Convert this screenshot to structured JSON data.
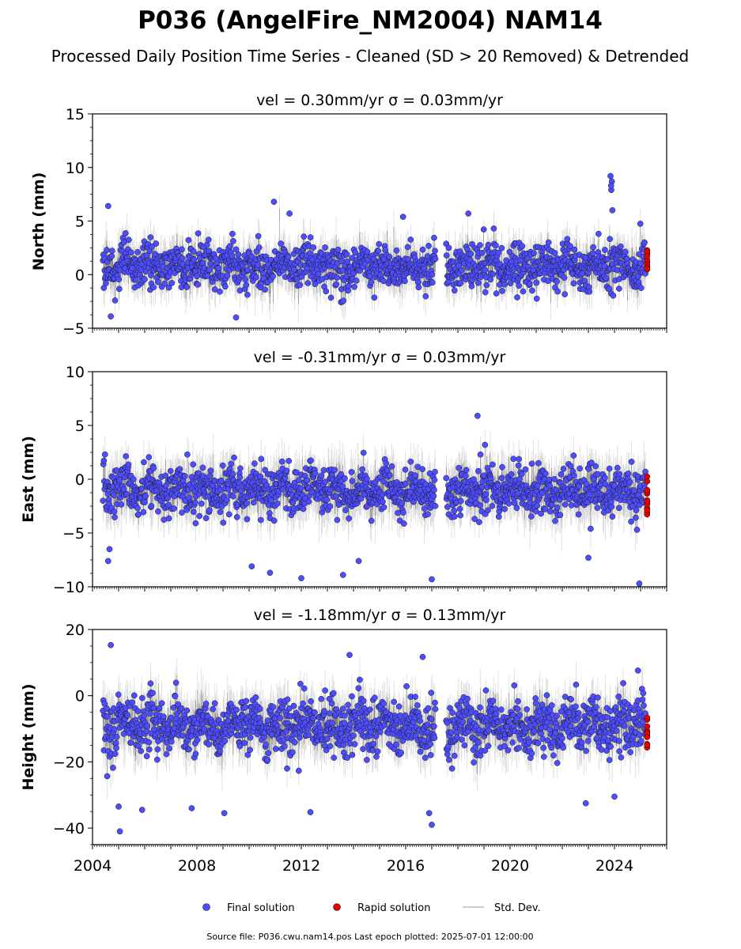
{
  "figure": {
    "title": "P036 (AngelFire_NM2004) NAM14",
    "subtitle": "Processed Daily Position Time Series - Cleaned (SD > 20 Removed) & Detrended",
    "footer": "Source file: P036.cwu.nam14.pos  Last epoch plotted: 2025-07-01 12:00:00"
  },
  "legend": [
    {
      "label": "Final solution",
      "color": "#4d4dff",
      "marker": "circle"
    },
    {
      "label": "Rapid solution",
      "color": "#e60000",
      "marker": "circle"
    },
    {
      "label": "Std. Dev.",
      "color": "#bbbbbb",
      "marker": "line"
    }
  ],
  "chart_data": [
    {
      "type": "scatter",
      "title": "vel = 0.30mm/yr   σ = 0.03mm/yr",
      "ylabel": "North (mm)",
      "xlim": [
        2004.0,
        2026.0
      ],
      "ylim": [
        -5,
        15
      ],
      "yticks": [
        -5,
        0,
        5,
        10,
        15
      ],
      "xticks": [
        2004,
        2008,
        2012,
        2016,
        2020,
        2024
      ],
      "final_span": [
        2004.4,
        2025.2
      ],
      "rapid_span": [
        2025.2,
        2025.5
      ],
      "gap": [
        2017.15,
        2017.55
      ],
      "center": 0.8,
      "spread": 1.4,
      "sd_typical": 1.3,
      "rapid_range": [
        0.4,
        2.3
      ],
      "outliers": [
        {
          "x": 2004.6,
          "y": 6.4
        },
        {
          "x": 2004.7,
          "y": -3.9
        },
        {
          "x": 2009.5,
          "y": -4.0
        },
        {
          "x": 2010.95,
          "y": 6.8
        },
        {
          "x": 2011.55,
          "y": 5.7
        },
        {
          "x": 2015.9,
          "y": 5.4
        },
        {
          "x": 2018.4,
          "y": 5.7
        },
        {
          "x": 2023.85,
          "y": 9.2
        },
        {
          "x": 2023.9,
          "y": 8.7
        },
        {
          "x": 2023.88,
          "y": 7.9
        },
        {
          "x": 2023.92,
          "y": 6.0
        },
        {
          "x": 2023.87,
          "y": 8.3
        }
      ],
      "series": [
        {
          "name": "Final solution",
          "values": []
        },
        {
          "name": "Rapid solution",
          "values": []
        }
      ]
    },
    {
      "type": "scatter",
      "title": "vel = -0.31mm/yr   σ = 0.03mm/yr",
      "ylabel": "East (mm)",
      "xlim": [
        2004.0,
        2026.0
      ],
      "ylim": [
        -10,
        10
      ],
      "yticks": [
        -10,
        -5,
        0,
        5,
        10
      ],
      "xticks": [
        2004,
        2008,
        2012,
        2016,
        2020,
        2024
      ],
      "final_span": [
        2004.4,
        2025.2
      ],
      "rapid_span": [
        2025.2,
        2025.5
      ],
      "gap": [
        2017.15,
        2017.55
      ],
      "center": -1.0,
      "spread": 1.5,
      "sd_typical": 1.6,
      "rapid_range": [
        -3.6,
        0.4
      ],
      "outliers": [
        {
          "x": 2004.6,
          "y": -7.6
        },
        {
          "x": 2004.65,
          "y": -6.5
        },
        {
          "x": 2010.8,
          "y": -8.7
        },
        {
          "x": 2012.0,
          "y": -9.2
        },
        {
          "x": 2013.6,
          "y": -8.9
        },
        {
          "x": 2017.0,
          "y": -9.3
        },
        {
          "x": 2018.75,
          "y": 5.9
        },
        {
          "x": 2023.0,
          "y": -7.3
        },
        {
          "x": 2024.95,
          "y": -9.7
        },
        {
          "x": 2014.2,
          "y": -7.6
        },
        {
          "x": 2010.1,
          "y": -8.1
        }
      ],
      "series": [
        {
          "name": "Final solution",
          "values": []
        },
        {
          "name": "Rapid solution",
          "values": []
        }
      ]
    },
    {
      "type": "scatter",
      "title": "vel = -1.18mm/yr   σ = 0.13mm/yr",
      "ylabel": "Height (mm)",
      "xlim": [
        2004.0,
        2026.0
      ],
      "ylim": [
        -45,
        20
      ],
      "yticks": [
        -40,
        -20,
        0,
        20
      ],
      "xticks": [
        2004,
        2008,
        2012,
        2016,
        2020,
        2024
      ],
      "final_span": [
        2004.4,
        2025.2
      ],
      "rapid_span": [
        2025.2,
        2025.5
      ],
      "gap": [
        2017.15,
        2017.55
      ],
      "center": -9.0,
      "spread": 5.5,
      "sd_typical": 5.0,
      "rapid_range": [
        -16.0,
        -4.0
      ],
      "outliers": [
        {
          "x": 2004.7,
          "y": 15.3
        },
        {
          "x": 2005.05,
          "y": -41.0
        },
        {
          "x": 2005.0,
          "y": -33.5
        },
        {
          "x": 2005.9,
          "y": -34.5
        },
        {
          "x": 2007.8,
          "y": -34.0
        },
        {
          "x": 2009.05,
          "y": -35.5
        },
        {
          "x": 2012.35,
          "y": -35.2
        },
        {
          "x": 2013.85,
          "y": 12.3
        },
        {
          "x": 2016.65,
          "y": 11.7
        },
        {
          "x": 2017.0,
          "y": -39.0
        },
        {
          "x": 2016.9,
          "y": -35.5
        },
        {
          "x": 2022.9,
          "y": -32.5
        },
        {
          "x": 2024.9,
          "y": 7.6
        },
        {
          "x": 2024.0,
          "y": -30.5
        }
      ],
      "series": [
        {
          "name": "Final solution",
          "values": []
        },
        {
          "name": "Rapid solution",
          "values": []
        }
      ]
    }
  ]
}
